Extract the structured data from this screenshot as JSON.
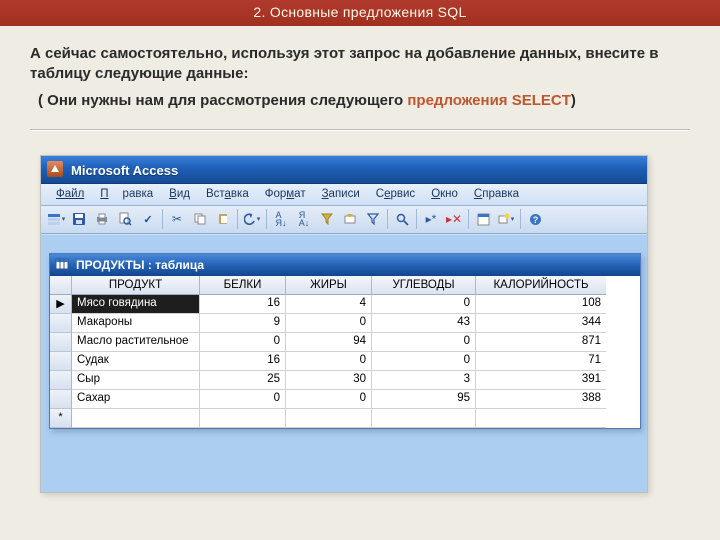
{
  "slide": {
    "title": "2. Основные предложения SQL",
    "line1": "А сейчас самостоятельно, используя этот запрос на добавление данных, внесите в таблицу следующие данные:",
    "line2_prefix": "( Они нужны нам для рассмотрения следующего ",
    "line2_hl": "предложения SELECT",
    "line2_suffix": ")"
  },
  "colors": {
    "title_bg": "#a93226",
    "slide_bg": "#efece3",
    "highlight": "#c0562e",
    "access_titlebar_top": "#3b80d9",
    "access_titlebar_bottom": "#164a92",
    "mdi_bg": "#accff1",
    "selected_cell_bg": "#1e1e1e"
  },
  "access": {
    "app_title": "Microsoft Access",
    "menus": [
      "Файл",
      "Правка",
      "Вид",
      "Вставка",
      "Формат",
      "Записи",
      "Сервис",
      "Окно",
      "Справка"
    ],
    "table_window_title": "ПРОДУКТЫ : таблица",
    "columns": [
      "ПРОДУКТ",
      "БЕЛКИ",
      "ЖИРЫ",
      "УГЛЕВОДЫ",
      "КАЛОРИЙНОСТЬ"
    ],
    "rows": [
      {
        "product": "Мясо говядина",
        "protein": 16,
        "fat": 4,
        "carbs": 0,
        "cal": 108,
        "current": true
      },
      {
        "product": "Макароны",
        "protein": 9,
        "fat": 0,
        "carbs": 43,
        "cal": 344
      },
      {
        "product": "Масло растительное",
        "protein": 0,
        "fat": 94,
        "carbs": 0,
        "cal": 871
      },
      {
        "product": "Судак",
        "protein": 16,
        "fat": 0,
        "carbs": 0,
        "cal": 71
      },
      {
        "product": "Сыр",
        "protein": 25,
        "fat": 30,
        "carbs": 3,
        "cal": 391
      },
      {
        "product": "Сахар",
        "protein": 0,
        "fat": 0,
        "carbs": 95,
        "cal": 388
      }
    ]
  },
  "toolbar_icons": [
    "design-view-icon",
    "save-icon",
    "print-icon",
    "print-preview-icon",
    "spellcheck-icon",
    "sep",
    "cut-icon",
    "copy-icon",
    "paste-icon",
    "sep",
    "undo-icon",
    "sep",
    "sort-asc-icon",
    "sort-desc-icon",
    "filter-selection-icon",
    "filter-form-icon",
    "toggle-filter-icon",
    "sep",
    "find-icon",
    "sep",
    "new-record-icon",
    "delete-record-icon",
    "sep",
    "database-window-icon",
    "new-object-icon",
    "sep",
    "help-icon"
  ]
}
